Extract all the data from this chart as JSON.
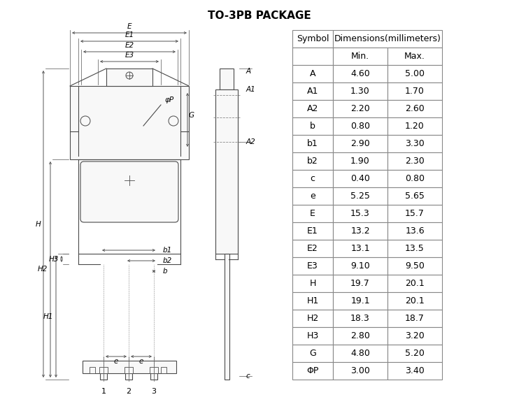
{
  "title": "TO-3PB PACKAGE",
  "title_fontsize": 11,
  "table_data": [
    [
      "A",
      "4.60",
      "5.00"
    ],
    [
      "A1",
      "1.30",
      "1.70"
    ],
    [
      "A2",
      "2.20",
      "2.60"
    ],
    [
      "b",
      "0.80",
      "1.20"
    ],
    [
      "b1",
      "2.90",
      "3.30"
    ],
    [
      "b2",
      "1.90",
      "2.30"
    ],
    [
      "c",
      "0.40",
      "0.80"
    ],
    [
      "e",
      "5.25",
      "5.65"
    ],
    [
      "E",
      "15.3",
      "15.7"
    ],
    [
      "E1",
      "13.2",
      "13.6"
    ],
    [
      "E2",
      "13.1",
      "13.5"
    ],
    [
      "E3",
      "9.10",
      "9.50"
    ],
    [
      "H",
      "19.7",
      "20.1"
    ],
    [
      "H1",
      "19.1",
      "20.1"
    ],
    [
      "H2",
      "18.3",
      "18.7"
    ],
    [
      "H3",
      "2.80",
      "3.20"
    ],
    [
      "G",
      "4.80",
      "5.20"
    ],
    [
      "ΦP",
      "3.00",
      "3.40"
    ]
  ],
  "bg_color": "#ffffff",
  "line_color": "#4a4a4a",
  "table_line_color": "#888888",
  "text_color": "#000000",
  "dim_color": "#555555"
}
